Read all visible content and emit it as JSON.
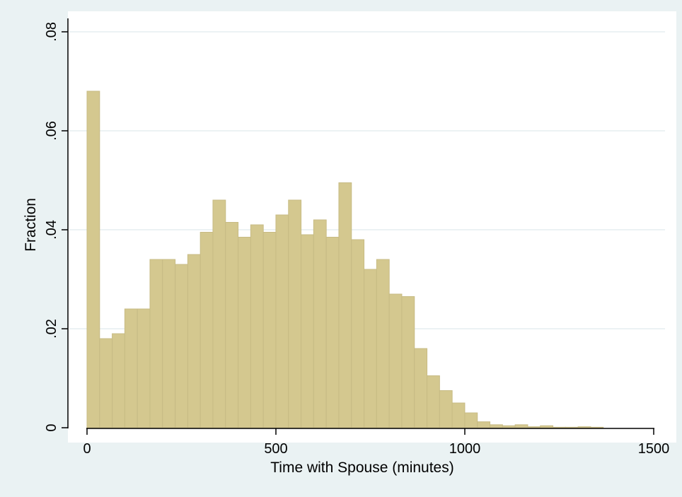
{
  "chart_data": {
    "type": "bar",
    "xlabel": "Time with Spouse (minutes)",
    "ylabel": "Fraction",
    "xlim": [
      -50,
      1550
    ],
    "ylim": [
      0,
      0.08
    ],
    "xticks": [
      {
        "value": 0,
        "label": "0"
      },
      {
        "value": 500,
        "label": "500"
      },
      {
        "value": 1000,
        "label": "1000"
      },
      {
        "value": 1500,
        "label": "1500"
      }
    ],
    "yticks": [
      {
        "value": 0,
        "label": "0"
      },
      {
        "value": 0.02,
        "label": ".02"
      },
      {
        "value": 0.04,
        "label": ".04"
      },
      {
        "value": 0.06,
        "label": ".06"
      },
      {
        "value": 0.08,
        "label": ".08"
      }
    ],
    "grid": true,
    "bin_width": 33.33,
    "bin_start": 0,
    "values": [
      0.068,
      0.018,
      0.019,
      0.024,
      0.024,
      0.034,
      0.034,
      0.033,
      0.035,
      0.0395,
      0.046,
      0.0415,
      0.0385,
      0.041,
      0.0395,
      0.043,
      0.046,
      0.039,
      0.042,
      0.0385,
      0.0495,
      0.038,
      0.032,
      0.034,
      0.027,
      0.0265,
      0.016,
      0.0105,
      0.0075,
      0.005,
      0.003,
      0.0012,
      0.0006,
      0.0004,
      0.0006,
      0.0002,
      0.0004,
      0.0001,
      0.0001,
      0.0002,
      0.0001
    ],
    "colors": {
      "bar_fill": "#d4c88f",
      "bar_stroke": "#c7bb84",
      "plot_bg": "#ffffff",
      "outer_bg": "#eaf2f3",
      "grid": "#e6eef0",
      "axis": "#000000"
    }
  }
}
